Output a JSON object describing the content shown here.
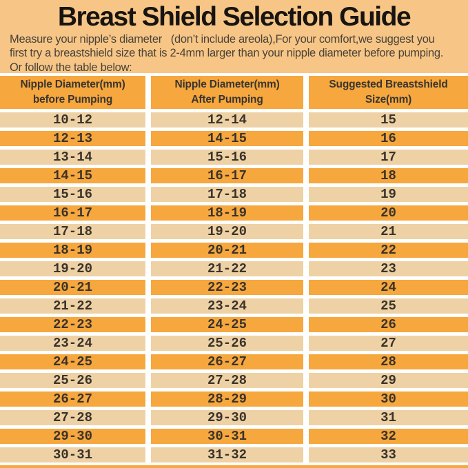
{
  "title": "Breast Shield Selection Guide",
  "intro": {
    "line1": "Measure your nipple’s diameter   (don’t include areola),For your comfort,we suggest you",
    "line2": "first try a breastshield size that is 2-4mm larger than your nipple diameter before pumping.",
    "line3": "Or follow the table below:"
  },
  "table": {
    "headers": [
      {
        "line1": "Nipple Diameter(mm)",
        "line2": "before Pumping"
      },
      {
        "line1": "Nipple Diameter(mm)",
        "line2": "After Pumping"
      },
      {
        "line1": "Suggested Breastshield",
        "line2": "Size(mm)"
      }
    ],
    "rows": [
      [
        "10-12",
        "12-14",
        "15"
      ],
      [
        "12-13",
        "14-15",
        "16"
      ],
      [
        "13-14",
        "15-16",
        "17"
      ],
      [
        "14-15",
        "16-17",
        "18"
      ],
      [
        "15-16",
        "17-18",
        "19"
      ],
      [
        "16-17",
        "18-19",
        "20"
      ],
      [
        "17-18",
        "19-20",
        "21"
      ],
      [
        "18-19",
        "20-21",
        "22"
      ],
      [
        "19-20",
        "21-22",
        "23"
      ],
      [
        "20-21",
        "22-23",
        "24"
      ],
      [
        "21-22",
        "23-24",
        "25"
      ],
      [
        "22-23",
        "24-25",
        "26"
      ],
      [
        "23-24",
        "25-26",
        "27"
      ],
      [
        "24-25",
        "26-27",
        "28"
      ],
      [
        "25-26",
        "27-28",
        "29"
      ],
      [
        "26-27",
        "28-29",
        "30"
      ],
      [
        "27-28",
        "29-30",
        "31"
      ],
      [
        "29-30",
        "30-31",
        "32"
      ],
      [
        "30-31",
        "31-32",
        "33"
      ]
    ]
  },
  "colors": {
    "background": "#F7C686",
    "row_orange": "#F6A73E",
    "row_tan": "#EED2A5",
    "separator": "#FFFFFF",
    "title_text": "#171411",
    "intro_text": "#4A433A",
    "cell_text": "#3A332B"
  }
}
